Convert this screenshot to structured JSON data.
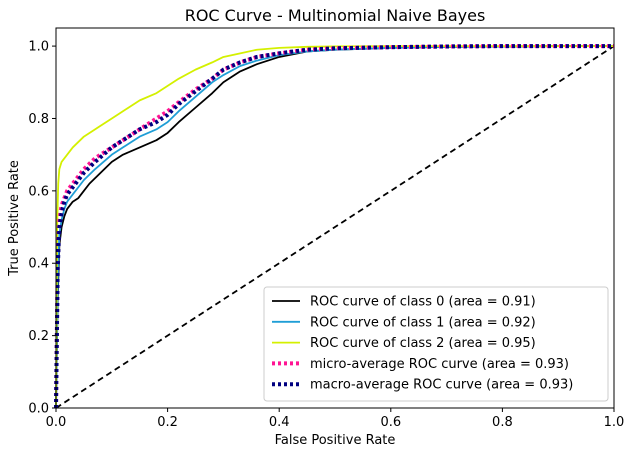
{
  "chart_data": {
    "type": "line",
    "title": "ROC Curve - Multinomial Naive Bayes",
    "xlabel": "False Positive Rate",
    "ylabel": "True Positive Rate",
    "xlim": [
      0.0,
      1.0
    ],
    "ylim": [
      0.0,
      1.05
    ],
    "xticks": [
      0.0,
      0.2,
      0.4,
      0.6,
      0.8,
      1.0
    ],
    "xtick_labels": [
      "0.0",
      "0.2",
      "0.4",
      "0.6",
      "0.8",
      "1.0"
    ],
    "yticks": [
      0.0,
      0.2,
      0.4,
      0.6,
      0.8,
      1.0
    ],
    "ytick_labels": [
      "0.0",
      "0.2",
      "0.4",
      "0.6",
      "0.8",
      "1.0"
    ],
    "grid": false,
    "legend_position": "lower-right",
    "series": [
      {
        "name": "ROC curve of class 0 (area = 0.91)",
        "color": "#000000",
        "style": "solid",
        "x": [
          0.0,
          0.003,
          0.006,
          0.01,
          0.015,
          0.02,
          0.03,
          0.04,
          0.05,
          0.06,
          0.08,
          0.1,
          0.12,
          0.15,
          0.18,
          0.2,
          0.22,
          0.25,
          0.28,
          0.3,
          0.33,
          0.36,
          0.4,
          0.45,
          0.5,
          0.6,
          0.7,
          0.8,
          0.9,
          1.0
        ],
        "y": [
          0.0,
          0.3,
          0.45,
          0.5,
          0.53,
          0.55,
          0.57,
          0.58,
          0.6,
          0.62,
          0.65,
          0.68,
          0.7,
          0.72,
          0.74,
          0.76,
          0.79,
          0.83,
          0.87,
          0.9,
          0.93,
          0.95,
          0.97,
          0.985,
          0.99,
          0.995,
          0.998,
          0.999,
          1.0,
          1.0
        ]
      },
      {
        "name": "ROC curve of class 1 (area = 0.92)",
        "color": "#1f9ed6",
        "style": "solid",
        "x": [
          0.0,
          0.003,
          0.006,
          0.01,
          0.015,
          0.02,
          0.03,
          0.04,
          0.05,
          0.07,
          0.1,
          0.12,
          0.15,
          0.18,
          0.2,
          0.22,
          0.25,
          0.28,
          0.3,
          0.33,
          0.36,
          0.4,
          0.45,
          0.5,
          0.6,
          0.7,
          0.8,
          0.9,
          1.0
        ],
        "y": [
          0.0,
          0.35,
          0.48,
          0.52,
          0.55,
          0.57,
          0.59,
          0.61,
          0.63,
          0.66,
          0.7,
          0.72,
          0.75,
          0.77,
          0.79,
          0.82,
          0.86,
          0.9,
          0.92,
          0.945,
          0.96,
          0.975,
          0.985,
          0.99,
          0.995,
          0.998,
          0.999,
          1.0,
          1.0
        ]
      },
      {
        "name": "ROC curve of class 2 (area = 0.95)",
        "color": "#d4f000",
        "style": "solid",
        "x": [
          0.0,
          0.002,
          0.004,
          0.006,
          0.01,
          0.015,
          0.02,
          0.03,
          0.05,
          0.07,
          0.1,
          0.13,
          0.15,
          0.18,
          0.2,
          0.22,
          0.25,
          0.28,
          0.3,
          0.33,
          0.36,
          0.4,
          0.45,
          0.5,
          0.6,
          0.7,
          0.8,
          0.9,
          1.0
        ],
        "y": [
          0.0,
          0.5,
          0.62,
          0.66,
          0.68,
          0.69,
          0.7,
          0.72,
          0.75,
          0.77,
          0.8,
          0.83,
          0.85,
          0.87,
          0.89,
          0.91,
          0.935,
          0.955,
          0.97,
          0.98,
          0.99,
          0.995,
          0.998,
          0.999,
          1.0,
          1.0,
          1.0,
          1.0,
          1.0
        ]
      },
      {
        "name": "micro-average ROC curve (area = 0.93)",
        "color": "#ff1493",
        "style": "dotted",
        "x": [
          0.0,
          0.003,
          0.006,
          0.01,
          0.015,
          0.02,
          0.03,
          0.04,
          0.05,
          0.07,
          0.1,
          0.12,
          0.15,
          0.18,
          0.2,
          0.22,
          0.25,
          0.28,
          0.3,
          0.33,
          0.36,
          0.4,
          0.45,
          0.5,
          0.6,
          0.7,
          0.8,
          0.9,
          1.0
        ],
        "y": [
          0.0,
          0.4,
          0.52,
          0.56,
          0.58,
          0.6,
          0.62,
          0.64,
          0.66,
          0.69,
          0.72,
          0.74,
          0.77,
          0.8,
          0.82,
          0.845,
          0.88,
          0.91,
          0.935,
          0.955,
          0.97,
          0.98,
          0.99,
          0.994,
          0.997,
          0.999,
          1.0,
          1.0,
          1.0
        ]
      },
      {
        "name": "macro-average ROC curve (area = 0.93)",
        "color": "#000080",
        "style": "dotted",
        "x": [
          0.0,
          0.003,
          0.006,
          0.01,
          0.015,
          0.02,
          0.03,
          0.04,
          0.05,
          0.07,
          0.1,
          0.12,
          0.15,
          0.18,
          0.2,
          0.22,
          0.25,
          0.28,
          0.3,
          0.33,
          0.36,
          0.4,
          0.45,
          0.5,
          0.6,
          0.7,
          0.8,
          0.9,
          1.0
        ],
        "y": [
          0.0,
          0.38,
          0.5,
          0.54,
          0.57,
          0.59,
          0.61,
          0.63,
          0.65,
          0.68,
          0.72,
          0.74,
          0.77,
          0.79,
          0.81,
          0.84,
          0.875,
          0.91,
          0.935,
          0.955,
          0.97,
          0.98,
          0.99,
          0.994,
          0.997,
          0.999,
          1.0,
          1.0,
          1.0
        ]
      }
    ],
    "reference_line": {
      "color": "#000000",
      "style": "dashed",
      "x": [
        0.0,
        1.0
      ],
      "y": [
        0.0,
        1.0
      ]
    }
  }
}
